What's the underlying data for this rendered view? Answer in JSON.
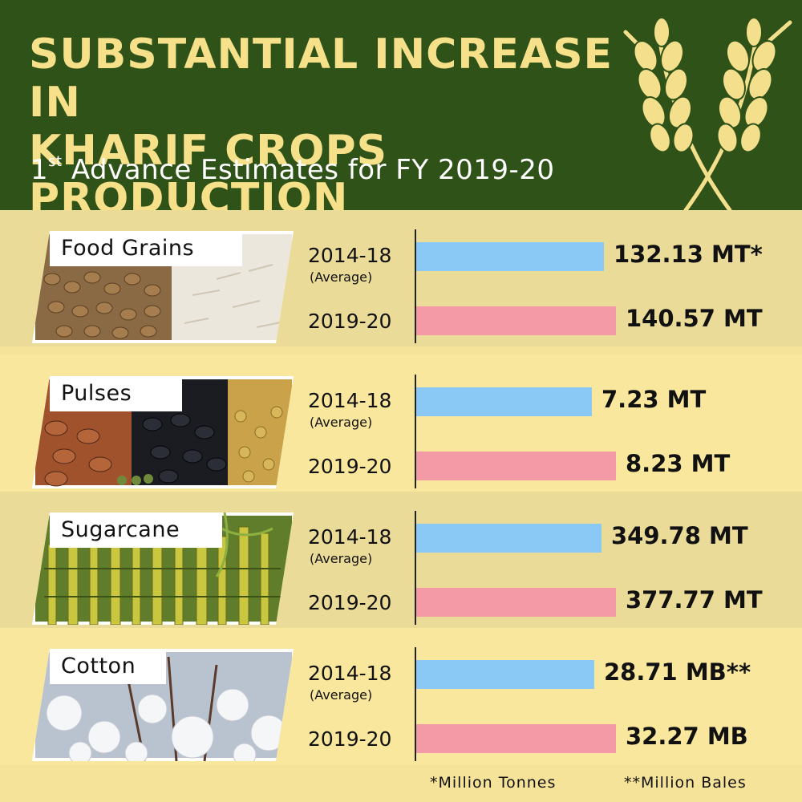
{
  "header": {
    "title_line1": "SUBSTANTIAL INCREASE IN",
    "title_line2": "KHARIF CROPS PRODUCTION",
    "subtitle_prefix": "1",
    "subtitle_sup": "st",
    "subtitle_rest": " Advance Estimates for FY 2019-20",
    "icon": "wheat-icon"
  },
  "colors": {
    "header_bg": "#2f5218",
    "title": "#f7e08a",
    "bar_avg": "#8ac8f6",
    "bar_current": "#f49aa6"
  },
  "chart_data": {
    "type": "bar",
    "orientation": "horizontal",
    "groups": [
      {
        "name": "Food Grains",
        "rows": [
          {
            "label": "2014-18",
            "sublabel": "(Average)",
            "value": 132.13,
            "value_label": "132.13 MT*"
          },
          {
            "label": "2019-20",
            "value": 140.57,
            "value_label": "140.57 MT"
          }
        ]
      },
      {
        "name": "Pulses",
        "rows": [
          {
            "label": "2014-18",
            "sublabel": "(Average)",
            "value": 7.23,
            "value_label": "7.23 MT"
          },
          {
            "label": "2019-20",
            "value": 8.23,
            "value_label": "8.23 MT"
          }
        ]
      },
      {
        "name": "Sugarcane",
        "rows": [
          {
            "label": "2014-18",
            "sublabel": "(Average)",
            "value": 349.78,
            "value_label": "349.78 MT"
          },
          {
            "label": "2019-20",
            "value": 377.77,
            "value_label": "377.77 MT"
          }
        ]
      },
      {
        "name": "Cotton",
        "rows": [
          {
            "label": "2014-18",
            "sublabel": "(Average)",
            "value": 28.71,
            "value_label": "28.71 MB**"
          },
          {
            "label": "2019-20",
            "value": 32.27,
            "value_label": "32.27 MB"
          }
        ]
      }
    ]
  },
  "footer": {
    "note1": "*Million Tonnes",
    "note2": "**Million Bales"
  }
}
